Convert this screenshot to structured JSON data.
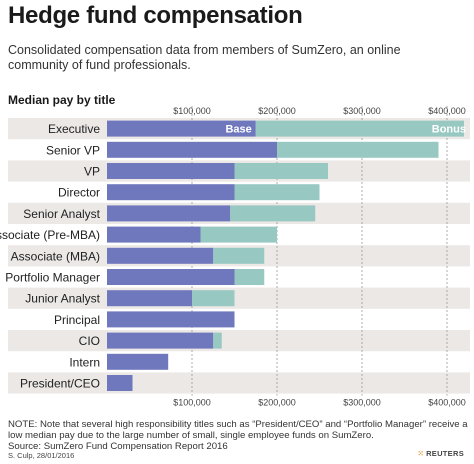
{
  "header": {
    "title": "Hedge fund compensation",
    "subtitle": "Consolidated compensation data from members of SumZero, an online community of fund professionals.",
    "section_label": "Median pay by title"
  },
  "colors": {
    "base": "#6f77bd",
    "bonus": "#98c8c2",
    "stripe": "#ebe8e6",
    "grid": "#9a9a9a"
  },
  "chart_data": {
    "type": "bar",
    "orientation": "horizontal",
    "stacked": true,
    "categories": [
      "Executive",
      "Senior VP",
      "VP",
      "Director",
      "Senior Analyst",
      "Associate (Pre-MBA)",
      "Associate (MBA)",
      "Portfolio Manager",
      "Junior Analyst",
      "Principal",
      "CIO",
      "Intern",
      "President/CEO"
    ],
    "series": [
      {
        "name": "Base",
        "values": [
          175000,
          200000,
          150000,
          150000,
          145000,
          110000,
          125000,
          150000,
          100000,
          150000,
          125000,
          72000,
          30000
        ]
      },
      {
        "name": "Bonus",
        "values": [
          245000,
          190000,
          110000,
          100000,
          100000,
          90000,
          60000,
          35000,
          50000,
          0,
          10000,
          0,
          0
        ]
      }
    ],
    "x_ticks": [
      "$100,000",
      "$200,000",
      "$300,000",
      "$400,000"
    ],
    "x_tick_values": [
      100000,
      200000,
      300000,
      400000
    ],
    "xlim": [
      0,
      420000
    ],
    "grid": "vertical dashed",
    "legend": "inline labels inside top bar"
  },
  "footer": {
    "note": "NOTE: Note that several high responsibility titles such as “President/CEO” and “Portfolio Manager” receive a low median pay due to the large number of small, single employee funds on SumZero.",
    "source": "Source: SumZero Fund Compensation Report 2016",
    "credit": "S. Culp, 28/01/2016",
    "logo_text": "REUTERS"
  }
}
